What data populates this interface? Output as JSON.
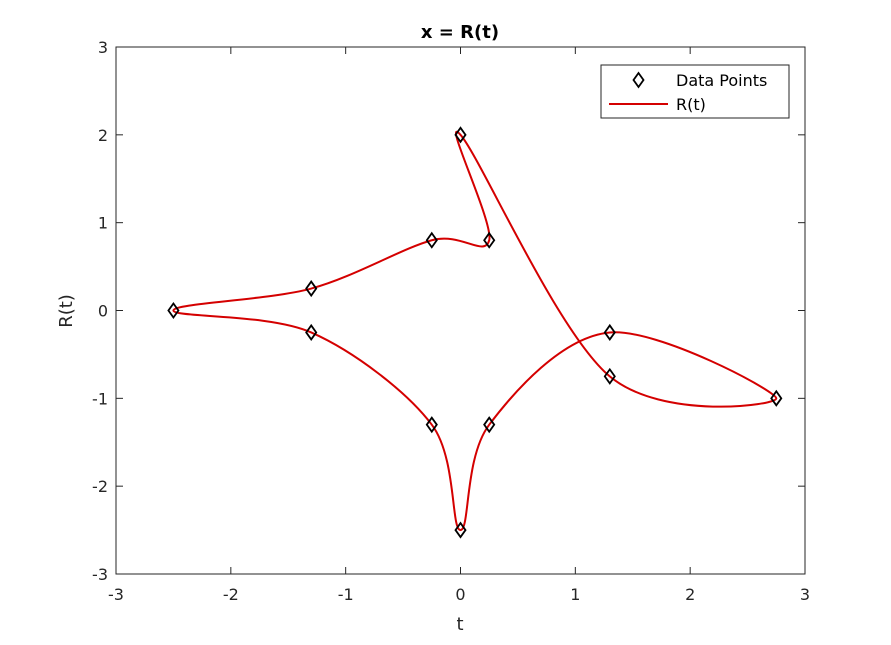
{
  "chart_data": {
    "type": "line",
    "title": "x = R(t)",
    "xlabel": "t",
    "ylabel": "R(t)",
    "xlim": [
      -3,
      3
    ],
    "ylim": [
      -3,
      3
    ],
    "xticks": [
      -3,
      -2,
      -1,
      0,
      1,
      2,
      3
    ],
    "yticks": [
      -3,
      -2,
      -1,
      0,
      1,
      2,
      3
    ],
    "xtick_labels": [
      "-3",
      "-2",
      "-1",
      "0",
      "1",
      "2",
      "3"
    ],
    "ytick_labels": [
      "-3",
      "-2",
      "-1",
      "0",
      "1",
      "2",
      "3"
    ],
    "grid": false,
    "legend_position": "top-right",
    "series": [
      {
        "name": "Data Points",
        "type": "scatter",
        "marker": "diamond",
        "color": "#000000",
        "x": [
          0,
          0.25,
          -0.25,
          -1.3,
          -2.5,
          -1.3,
          -0.25,
          0,
          0.25,
          1.3,
          2.75,
          1.3
        ],
        "y": [
          2,
          0.8,
          0.8,
          0.25,
          0,
          -0.25,
          -1.3,
          -2.5,
          -1.3,
          -0.25,
          -1,
          -0.75
        ]
      },
      {
        "name": "R(t)",
        "type": "line",
        "color": "#d40000",
        "closed": true,
        "through": [
          0,
          1,
          2,
          3,
          4,
          5,
          6,
          7,
          8,
          9,
          10,
          11
        ]
      }
    ]
  }
}
